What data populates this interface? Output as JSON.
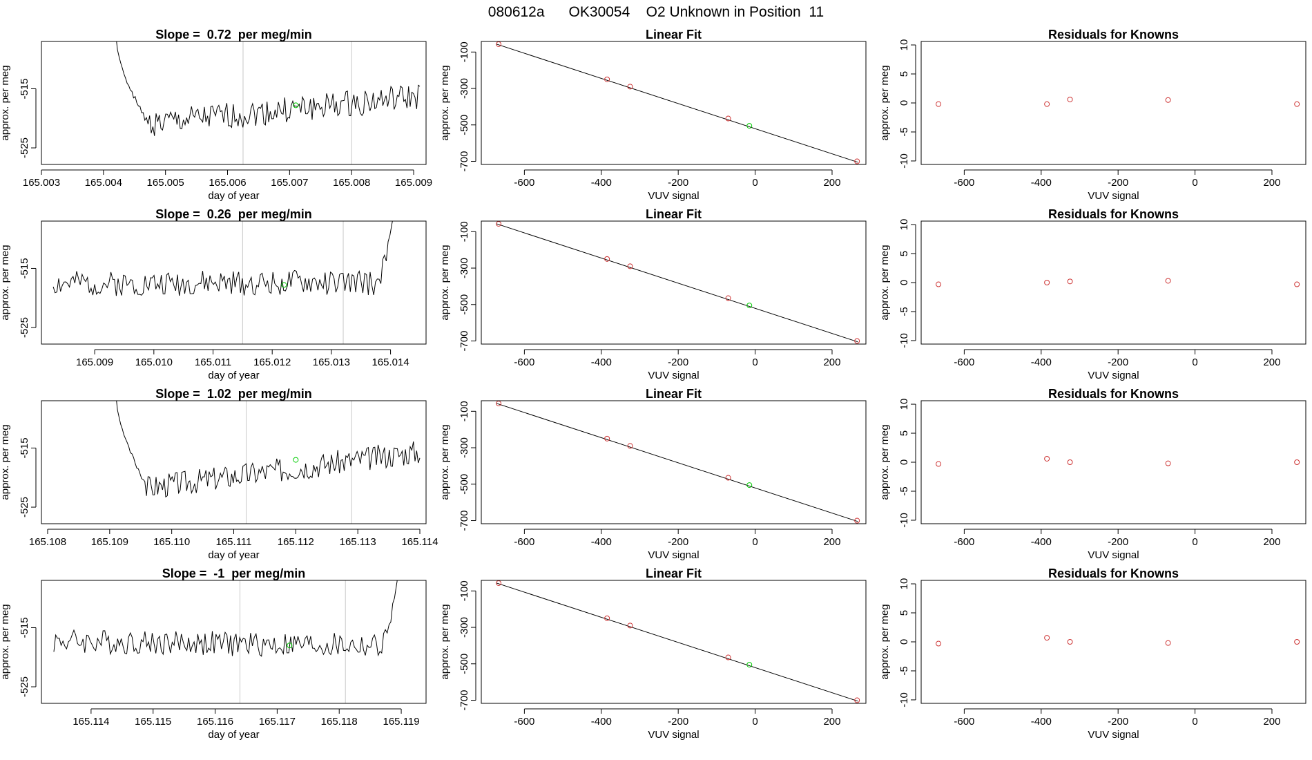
{
  "main_title": "080612a      OK30054    O2 Unknown in Position  11",
  "chart_data": [
    {
      "type": "line",
      "row": 0,
      "col": 0,
      "title": "Slope =  0.72  per meg/min",
      "xlabel": "day of year",
      "ylabel": "approx. per meg",
      "xlim": [
        165.003,
        165.0092
      ],
      "ylim": [
        -527.8,
        -507
      ],
      "xticks": [
        "165.003",
        "165.004",
        "165.005",
        "165.006",
        "165.007",
        "165.008",
        "165.009"
      ],
      "yticks": [
        "-515",
        "-525"
      ],
      "start_x": 165.0042,
      "end_x": 165.0091,
      "series": [
        {
          "seed": 1,
          "base_start": -521.5,
          "base_end": -516.3,
          "noise": 1.6,
          "spike": {
            "width": 0.11,
            "from": -506,
            "to": -521
          }
        }
      ],
      "vlines": [
        165.00625,
        165.008
      ],
      "marker": {
        "x": 165.0071,
        "y": -517.8,
        "color": "#00cc00"
      }
    },
    {
      "type": "scatter",
      "row": 0,
      "col": 1,
      "title": "Linear Fit",
      "xlabel": "VUV signal",
      "ylabel": "approx. per meg",
      "xlim": [
        -712,
        288
      ],
      "ylim": [
        -717,
        -42
      ],
      "xticks": [
        "-600",
        "-400",
        "-200",
        "0",
        "200"
      ],
      "yticks": [
        "-100",
        "-300",
        "-500",
        "-700"
      ],
      "fit_line": {
        "x": [
          -672,
          267
        ],
        "y": [
          -57,
          -705
        ]
      },
      "knowns": [
        [
          -667,
          -57
        ],
        [
          -385,
          -250
        ],
        [
          -325,
          -290
        ],
        [
          -70,
          -465
        ],
        [
          265,
          -700
        ]
      ],
      "unknown": [
        -15,
        -505
      ],
      "known_color": "#cd3333",
      "unknown_color": "#00cc00"
    },
    {
      "type": "scatter",
      "row": 0,
      "col": 2,
      "title": "Residuals for Knowns",
      "xlabel": "VUV signal",
      "ylabel": "approx. per meg",
      "xlim": [
        -712,
        288
      ],
      "ylim": [
        -10.6,
        10.6
      ],
      "xticks": [
        "-600",
        "-400",
        "-200",
        "0",
        "200"
      ],
      "yticks": [
        "10",
        "5",
        "0",
        "-5",
        "-10"
      ],
      "points": [
        [
          -667,
          -0.2
        ],
        [
          -385,
          -0.2
        ],
        [
          -325,
          0.6
        ],
        [
          -70,
          0.5
        ],
        [
          265,
          -0.2
        ]
      ],
      "point_color": "#cd3333"
    },
    {
      "type": "line",
      "row": 1,
      "col": 0,
      "title": "Slope =  0.26  per meg/min",
      "xlabel": "day of year",
      "ylabel": "approx. per meg",
      "xlim": [
        165.0081,
        165.0146
      ],
      "ylim": [
        -527.8,
        -507
      ],
      "xticks": [
        "165.009",
        "165.010",
        "165.011",
        "165.012",
        "165.013",
        "165.014"
      ],
      "yticks": [
        "-515",
        "-525"
      ],
      "start_x": 165.0083,
      "end_x": 165.01405,
      "series": [
        {
          "seed": 2,
          "base_start": -517.6,
          "base_end": -517.4,
          "noise": 1.5,
          "endspike": {
            "width": 0.05,
            "to": -506
          }
        }
      ],
      "vlines": [
        165.0115,
        165.0132
      ],
      "marker": {
        "x": 165.0122,
        "y": -517.8,
        "color": "#00cc00"
      }
    },
    {
      "type": "scatter",
      "row": 1,
      "col": 1,
      "title": "Linear Fit",
      "xlabel": "VUV signal",
      "ylabel": "approx. per meg",
      "xlim": [
        -712,
        288
      ],
      "ylim": [
        -717,
        -42
      ],
      "xticks": [
        "-600",
        "-400",
        "-200",
        "0",
        "200"
      ],
      "yticks": [
        "-100",
        "-300",
        "-500",
        "-700"
      ],
      "fit_line": {
        "x": [
          -672,
          267
        ],
        "y": [
          -57,
          -705
        ]
      },
      "knowns": [
        [
          -667,
          -57
        ],
        [
          -385,
          -250
        ],
        [
          -325,
          -290
        ],
        [
          -70,
          -465
        ],
        [
          265,
          -700
        ]
      ],
      "unknown": [
        -15,
        -505
      ],
      "known_color": "#cd3333",
      "unknown_color": "#00cc00"
    },
    {
      "type": "scatter",
      "row": 1,
      "col": 2,
      "title": "Residuals for Knowns",
      "xlabel": "VUV signal",
      "ylabel": "approx. per meg",
      "xlim": [
        -712,
        288
      ],
      "ylim": [
        -10.6,
        10.6
      ],
      "xticks": [
        "-600",
        "-400",
        "-200",
        "0",
        "200"
      ],
      "yticks": [
        "10",
        "5",
        "0",
        "-5",
        "-10"
      ],
      "points": [
        [
          -667,
          -0.3
        ],
        [
          -385,
          0.0
        ],
        [
          -325,
          0.2
        ],
        [
          -70,
          0.3
        ],
        [
          265,
          -0.3
        ]
      ],
      "point_color": "#cd3333"
    },
    {
      "type": "line",
      "row": 2,
      "col": 0,
      "title": "Slope =  1.02  per meg/min",
      "xlabel": "day of year",
      "ylabel": "approx. per meg",
      "xlim": [
        165.1079,
        165.1141
      ],
      "ylim": [
        -527.8,
        -507
      ],
      "xticks": [
        "165.108",
        "165.109",
        "165.110",
        "165.111",
        "165.112",
        "165.113",
        "165.114"
      ],
      "yticks": [
        "-515",
        "-525"
      ],
      "start_x": 165.1091,
      "end_x": 165.114,
      "series": [
        {
          "seed": 3,
          "base_start": -522.4,
          "base_end": -515.6,
          "noise": 1.5,
          "spike": {
            "width": 0.1,
            "from": -506,
            "to": -521
          }
        }
      ],
      "vlines": [
        165.1112,
        165.1129
      ],
      "marker": {
        "x": 165.112,
        "y": -517,
        "color": "#00cc00"
      }
    },
    {
      "type": "scatter",
      "row": 2,
      "col": 1,
      "title": "Linear Fit",
      "xlabel": "VUV signal",
      "ylabel": "approx. per meg",
      "xlim": [
        -712,
        288
      ],
      "ylim": [
        -717,
        -42
      ],
      "xticks": [
        "-600",
        "-400",
        "-200",
        "0",
        "200"
      ],
      "yticks": [
        "-100",
        "-300",
        "-500",
        "-700"
      ],
      "fit_line": {
        "x": [
          -672,
          267
        ],
        "y": [
          -57,
          -705
        ]
      },
      "knowns": [
        [
          -667,
          -57
        ],
        [
          -385,
          -250
        ],
        [
          -325,
          -290
        ],
        [
          -70,
          -465
        ],
        [
          265,
          -700
        ]
      ],
      "unknown": [
        -15,
        -505
      ],
      "known_color": "#cd3333",
      "unknown_color": "#00cc00"
    },
    {
      "type": "scatter",
      "row": 2,
      "col": 2,
      "title": "Residuals for Knowns",
      "xlabel": "VUV signal",
      "ylabel": "approx. per meg",
      "xlim": [
        -712,
        288
      ],
      "ylim": [
        -10.6,
        10.6
      ],
      "xticks": [
        "-600",
        "-400",
        "-200",
        "0",
        "200"
      ],
      "yticks": [
        "10",
        "5",
        "0",
        "-5",
        "-10"
      ],
      "points": [
        [
          -667,
          -0.3
        ],
        [
          -385,
          0.6
        ],
        [
          -325,
          0.0
        ],
        [
          -70,
          -0.2
        ],
        [
          265,
          0.0
        ]
      ],
      "point_color": "#cd3333"
    },
    {
      "type": "line",
      "row": 3,
      "col": 0,
      "title": "Slope =  -1  per meg/min",
      "xlabel": "day of year",
      "ylabel": "approx. per meg",
      "xlim": [
        165.1132,
        165.1194
      ],
      "ylim": [
        -527.8,
        -507
      ],
      "xticks": [
        "165.114",
        "165.115",
        "165.116",
        "165.117",
        "165.118",
        "165.119"
      ],
      "yticks": [
        "-515",
        "-525"
      ],
      "start_x": 165.1134,
      "end_x": 165.11895,
      "series": [
        {
          "seed": 4,
          "base_start": -517.2,
          "base_end": -518.2,
          "noise": 1.5,
          "endspike": {
            "width": 0.05,
            "to": -506
          }
        }
      ],
      "vlines": [
        165.1164,
        165.1181
      ],
      "marker": {
        "x": 165.1172,
        "y": -518,
        "color": "#00cc00"
      }
    },
    {
      "type": "scatter",
      "row": 3,
      "col": 1,
      "title": "Linear Fit",
      "xlabel": "VUV signal",
      "ylabel": "approx. per meg",
      "xlim": [
        -712,
        288
      ],
      "ylim": [
        -717,
        -42
      ],
      "xticks": [
        "-600",
        "-400",
        "-200",
        "0",
        "200"
      ],
      "yticks": [
        "-100",
        "-300",
        "-500",
        "-700"
      ],
      "fit_line": {
        "x": [
          -672,
          267
        ],
        "y": [
          -57,
          -705
        ]
      },
      "knowns": [
        [
          -667,
          -57
        ],
        [
          -385,
          -250
        ],
        [
          -325,
          -290
        ],
        [
          -70,
          -465
        ],
        [
          265,
          -700
        ]
      ],
      "unknown": [
        -15,
        -505
      ],
      "known_color": "#cd3333",
      "unknown_color": "#00cc00"
    },
    {
      "type": "scatter",
      "row": 3,
      "col": 2,
      "title": "Residuals for Knowns",
      "xlabel": "VUV signal",
      "ylabel": "approx. per meg",
      "xlim": [
        -712,
        288
      ],
      "ylim": [
        -10.6,
        10.6
      ],
      "xticks": [
        "-600",
        "-400",
        "-200",
        "0",
        "200"
      ],
      "yticks": [
        "10",
        "5",
        "0",
        "-5",
        "-10"
      ],
      "points": [
        [
          -667,
          -0.3
        ],
        [
          -385,
          0.7
        ],
        [
          -325,
          0.0
        ],
        [
          -70,
          -0.2
        ],
        [
          265,
          0.0
        ]
      ],
      "point_color": "#cd3333"
    }
  ]
}
